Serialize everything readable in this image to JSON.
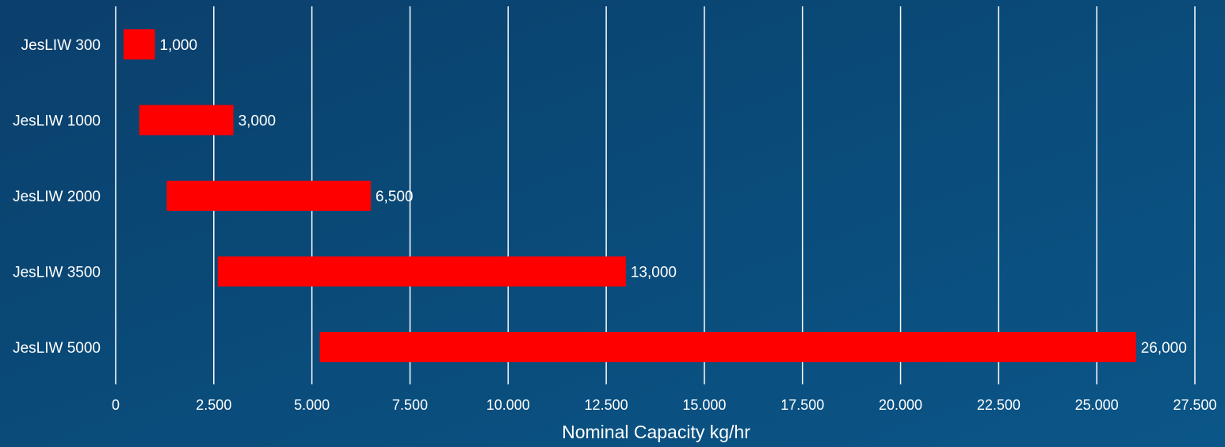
{
  "chart_data": {
    "type": "bar",
    "orientation": "horizontal",
    "xlabel": "Nominal Capacity kg/hr",
    "xlim": [
      0,
      27500
    ],
    "x_ticks": [
      "0",
      "2.500",
      "5.000",
      "7.500",
      "10.000",
      "12.500",
      "15.000",
      "17.500",
      "20.000",
      "22.500",
      "25.000",
      "27.500"
    ],
    "grid": true,
    "categories": [
      "JesLIW 300",
      "JesLIW 1000",
      "JesLIW 2000",
      "JesLIW 3500",
      "JesLIW 5000"
    ],
    "ranges": [
      {
        "min": 200,
        "max": 1000
      },
      {
        "min": 600,
        "max": 3000
      },
      {
        "min": 1300,
        "max": 6500
      },
      {
        "min": 2600,
        "max": 13000
      },
      {
        "min": 5200,
        "max": 26000
      }
    ],
    "data_labels": [
      "1,000",
      "3,000",
      "6,500",
      "13,000",
      "26,000"
    ],
    "bar_color": "#ff0000",
    "background_color": "#0b4a7a"
  }
}
